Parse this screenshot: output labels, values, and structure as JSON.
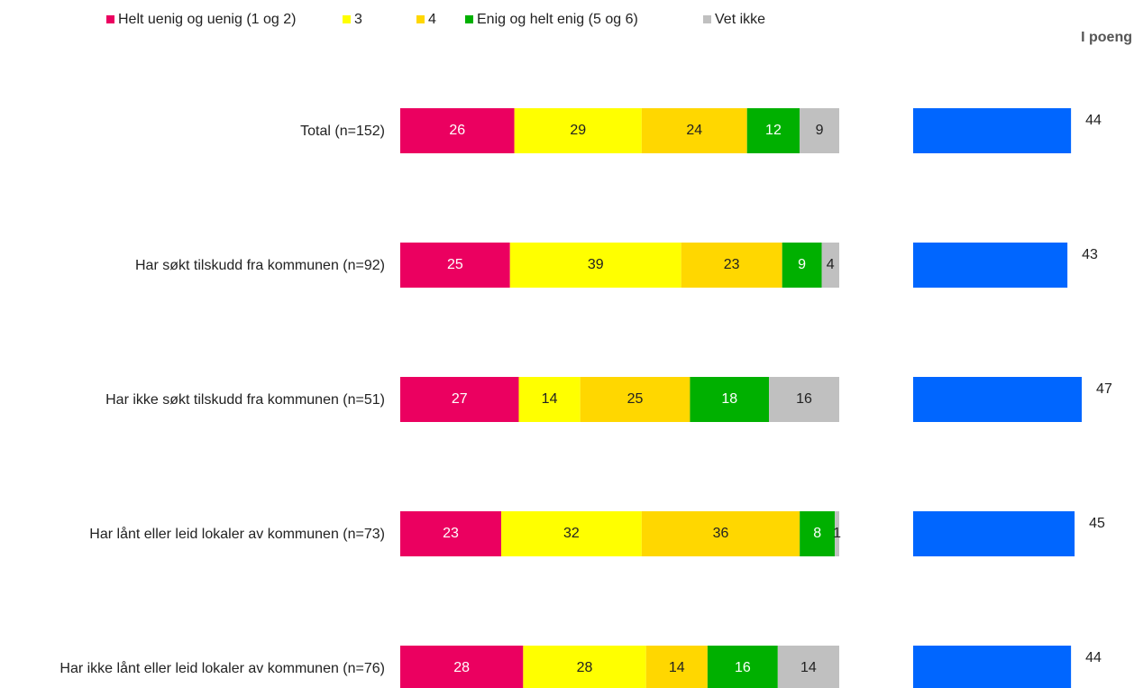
{
  "chart_data": [
    {
      "type": "stacked_bar_horizontal",
      "categories": [
        "Total (n=152)",
        "Har søkt tilskudd fra kommunen (n=92)",
        "Har ikke søkt tilskudd fra kommunen (n=51)",
        "Har lånt eller leid lokaler av kommunen (n=73)",
        "Har ikke lånt eller leid lokaler av kommunen (n=76)"
      ],
      "xlim": [
        0,
        100
      ],
      "legend": "top",
      "series": [
        {
          "name": "Helt uenig og uenig (1 og 2)",
          "color": "#eb0060",
          "label_color": "#ffffff",
          "values": [
            26,
            25,
            27,
            23,
            28
          ]
        },
        {
          "name": "3",
          "color": "#ffff00",
          "label_color": "#222222",
          "values": [
            29,
            39,
            14,
            32,
            28
          ]
        },
        {
          "name": "4",
          "color": "#ffd700",
          "label_color": "#222222",
          "values": [
            24,
            23,
            25,
            36,
            14
          ]
        },
        {
          "name": "Enig og helt enig (5 og 6)",
          "color": "#00b000",
          "label_color": "#ffffff",
          "values": [
            12,
            9,
            18,
            8,
            16
          ]
        },
        {
          "name": "Vet ikke",
          "color": "#c0c0c0",
          "label_color": "#222222",
          "values": [
            9,
            4,
            16,
            1,
            14
          ]
        }
      ]
    },
    {
      "type": "bar_horizontal",
      "title": "I poeng",
      "color": "#0066ff",
      "values": [
        44,
        43,
        47,
        45,
        44
      ]
    }
  ]
}
